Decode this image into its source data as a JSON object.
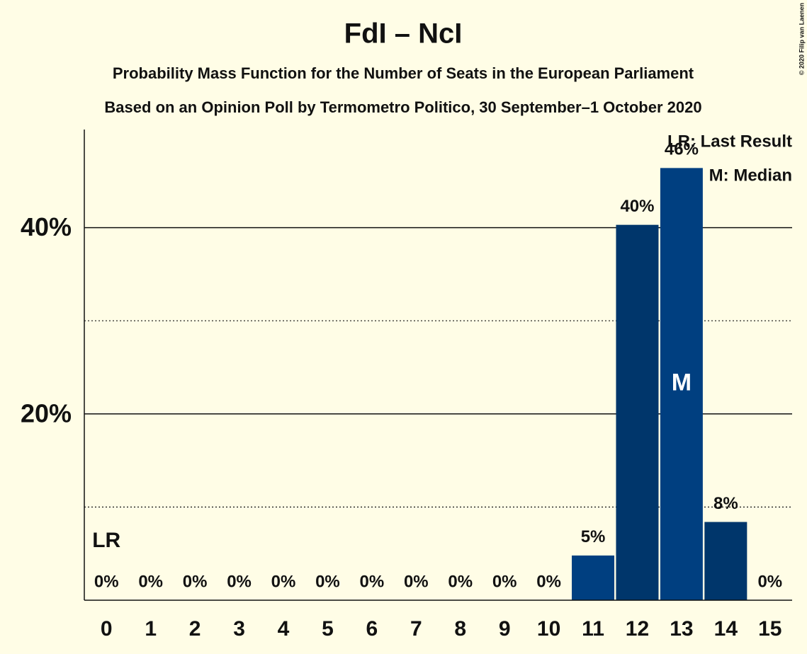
{
  "chart_data": {
    "type": "bar",
    "title": "FdI – NcI",
    "subtitles": [
      "Probability Mass Function for the Number of Seats in the European Parliament",
      "Based on an Opinion Poll by Termometro Politico, 30 September–1 October 2020"
    ],
    "categories": [
      "0",
      "1",
      "2",
      "3",
      "4",
      "5",
      "6",
      "7",
      "8",
      "9",
      "10",
      "11",
      "12",
      "13",
      "14",
      "15"
    ],
    "values": [
      0,
      0,
      0,
      0,
      0,
      0,
      0,
      0,
      0,
      0,
      0,
      4.8,
      40.3,
      46.4,
      8.4,
      0
    ],
    "value_labels": [
      "0%",
      "0%",
      "0%",
      "0%",
      "0%",
      "0%",
      "0%",
      "0%",
      "0%",
      "0%",
      "0%",
      "5%",
      "40%",
      "46%",
      "8%",
      "0%"
    ],
    "colors": [
      "#003f80",
      "#00366b",
      "#003f80",
      "#00366b",
      "#003f80",
      "#00366b",
      "#003f80",
      "#00366b",
      "#003f80",
      "#00366b",
      "#003f80",
      "#003f80",
      "#00366b",
      "#003f80",
      "#00366b",
      "#003f80"
    ],
    "ylim": [
      0,
      50
    ],
    "yticks": [
      {
        "value": 20,
        "label": "20%"
      },
      {
        "value": 40,
        "label": "40%"
      }
    ],
    "minor_yticks": [
      10,
      30
    ],
    "last_result": {
      "label": "LR",
      "category": 0
    },
    "median": {
      "label": "M",
      "category": 13
    },
    "legend": [
      "LR: Last Result",
      "M: Median"
    ],
    "copyright": "© 2020 Filip van Laenen"
  }
}
